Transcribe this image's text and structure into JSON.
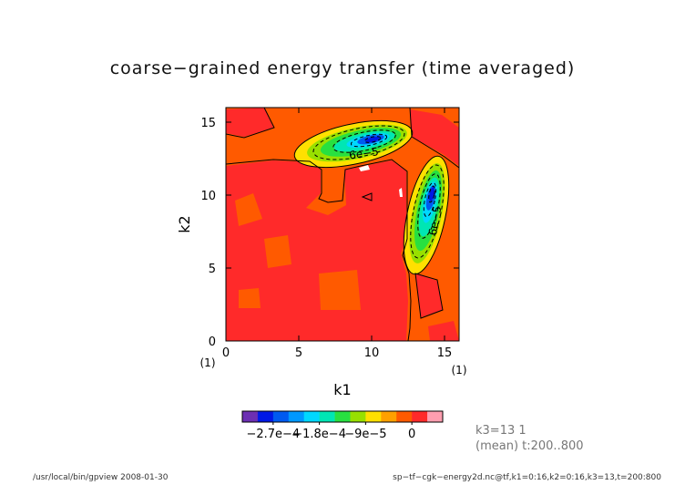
{
  "chart_data": {
    "type": "heatmap",
    "title": "coarse−grained energy transfer (time averaged)",
    "xlabel": "k1",
    "ylabel": "k2",
    "xlim": [
      0,
      16
    ],
    "ylim": [
      0,
      16
    ],
    "x_ticks": [
      "0",
      "5",
      "10",
      "15"
    ],
    "y_ticks": [
      "0",
      "5",
      "10",
      "15"
    ],
    "x_unit": "(1)",
    "y_unit": "(1)",
    "contour_labels": [
      {
        "text": "6e−5",
        "x": 9.5,
        "y": 12.6,
        "rotate": -8
      },
      {
        "text": "6e−5",
        "x": 14.6,
        "y": 8.2,
        "rotate": -80
      }
    ],
    "colorbar": {
      "colors": [
        "#6c2fb3",
        "#0018e6",
        "#005af0",
        "#0098ff",
        "#00d8ff",
        "#00e6b4",
        "#28e040",
        "#98e000",
        "#ffe000",
        "#ffa000",
        "#ff5a00",
        "#ff2a2a",
        "#ff9eb0"
      ],
      "tick_labels": [
        "−2.7e−4",
        "−1.8e−4",
        "−9e−5",
        "0"
      ]
    },
    "info_lines": [
      "k3=13 1",
      "(mean) t:200..800"
    ],
    "footer_left": "/usr/local/bin/gpview  2008-01-30",
    "footer_right": "sp−tf−cgk−energy2d.nc@tf,k1=0:16,k2=0:16,k3=13,t=200:800"
  }
}
